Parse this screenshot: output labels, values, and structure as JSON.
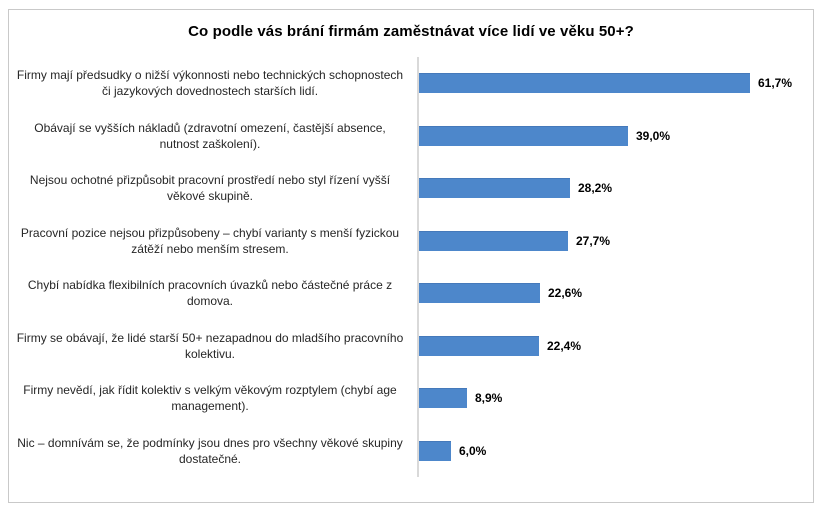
{
  "chart_data": {
    "type": "bar",
    "orientation": "horizontal",
    "title": "Co podle vás brání firmám zaměstnávat více lidí ve věku 50+?",
    "categories": [
      "Firmy mají předsudky o nižší výkonnosti nebo technických schopnostech či jazykových dovednostech starších lidí.",
      "Obávají se vyšších nákladů (zdravotní omezení, častější absence, nutnost zaškolení).",
      "Nejsou ochotné přizpůsobit pracovní prostředí nebo styl řízení vyšší věkové skupině.",
      "Pracovní pozice nejsou přizpůsobeny – chybí varianty s menší fyzickou zátěží nebo menším stresem.",
      "Chybí nabídka flexibilních pracovních úvazků nebo částečné práce z domova.",
      "Firmy se obávají, že lidé starší 50+ nezapadnou do mladšího pracovního kolektivu.",
      "Firmy nevědí, jak řídit kolektiv s velkým věkovým rozptylem (chybí age management).",
      "Nic – domnívám se, že podmínky jsou dnes pro všechny věkové skupiny dostatečné."
    ],
    "values": [
      61.7,
      39.0,
      28.2,
      27.7,
      22.6,
      22.4,
      8.9,
      6.0
    ],
    "value_labels": [
      "61,7%",
      "39,0%",
      "28,2%",
      "27,7%",
      "22,6%",
      "22,4%",
      "8,9%",
      "6,0%"
    ],
    "xlabel": "",
    "ylabel": "",
    "xlim": [
      0,
      70
    ],
    "grid": false,
    "legend": "none",
    "data_labels": true,
    "bar_color": "#4d87cb",
    "axis_line_color": "#d9d9d9",
    "frame_border_color": "#c9c9c9",
    "label_color": "#262626",
    "value_label_color": "#000000"
  }
}
